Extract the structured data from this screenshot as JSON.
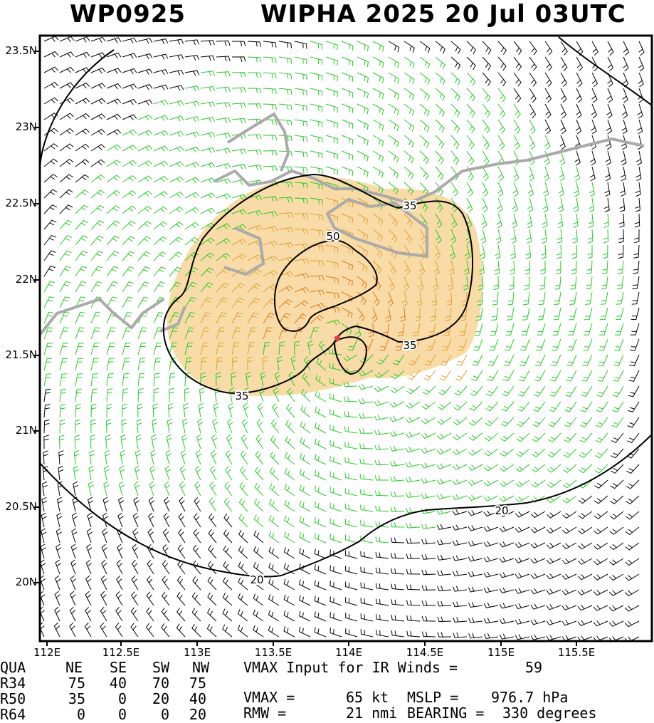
{
  "header": {
    "storm_id": "WP0925",
    "storm_title": "WIPHA 2025 20 Jul 03UTC"
  },
  "map": {
    "lat_labels": [
      "23.5N",
      "23N",
      "22.5N",
      "22N",
      "21.5N",
      "21N",
      "20.5N",
      "20N"
    ],
    "lon_labels": [
      "112E",
      "112.5E",
      "113E",
      "113.5E",
      "114E",
      "114.5E",
      "115E",
      "115.5E"
    ],
    "contour_labels": [
      "35",
      "50",
      "35",
      "35",
      "20",
      "20"
    ],
    "center": {
      "lat": 21.62,
      "lon": 113.93
    },
    "colors": {
      "barb_weak": "#000000",
      "barb_ts": "#22cc22",
      "barb_35kt_fill": "#f5cf8a",
      "barb_50kt": "#e07a1a",
      "coastline": "#aaaaaa",
      "center_marker": "#e04040"
    }
  },
  "wind_radii": {
    "headers": [
      "QUA",
      "NE",
      "SE",
      "SW",
      "NW"
    ],
    "rows": [
      [
        "R34",
        "75",
        "40",
        "70",
        "75"
      ],
      [
        "R50",
        "35",
        "0",
        "20",
        "40"
      ],
      [
        "R64",
        "0",
        "0",
        "0",
        "20"
      ]
    ]
  },
  "summary": {
    "vmax_input_label": "VMAX Input for IR Winds =",
    "vmax_input_value": "59",
    "vmax_label": "VMAX =",
    "vmax_value": "65 kt",
    "mslp_label": "MSLP =",
    "mslp_value": "976.7 hPa",
    "rmw_label": "RMW =",
    "rmw_value": "21 nmi",
    "bearing_label": "BEARING =",
    "bearing_value": "330 degrees"
  }
}
